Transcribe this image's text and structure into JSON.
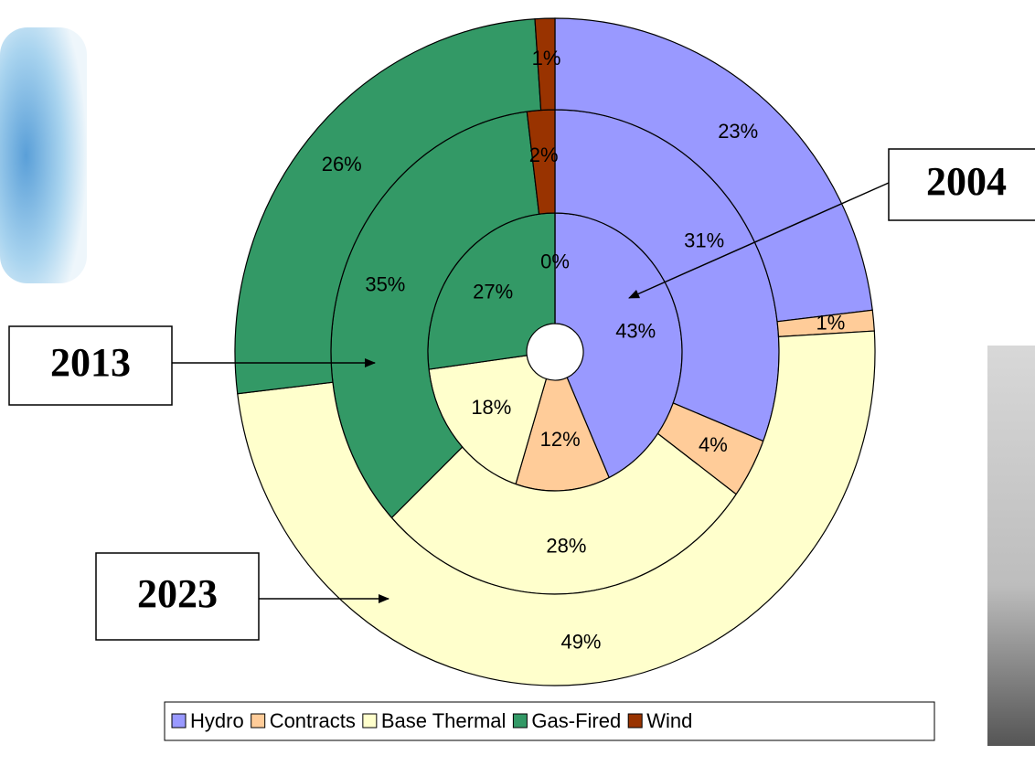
{
  "chart_data": {
    "type": "donut",
    "categories": [
      "Hydro",
      "Contracts",
      "Base Thermal",
      "Gas-Fired",
      "Wind"
    ],
    "colors": [
      "#9999ff",
      "#ffcc99",
      "#ffffcc",
      "#339966",
      "#993300"
    ],
    "rings": [
      {
        "name": "2004",
        "values": [
          43,
          12,
          18,
          27,
          0
        ],
        "value_labels": [
          "43%",
          "12%",
          "18%",
          "27%",
          "0%"
        ]
      },
      {
        "name": "2013",
        "values": [
          31,
          4,
          28,
          35,
          2
        ],
        "value_labels": [
          "31%",
          "4%",
          "28%",
          "35%",
          "2%"
        ]
      },
      {
        "name": "2023",
        "values": [
          23,
          1,
          49,
          26,
          1
        ],
        "value_labels": [
          "23%",
          "1%",
          "49%",
          "26%",
          "1%"
        ]
      }
    ],
    "legend": "bottom"
  }
}
